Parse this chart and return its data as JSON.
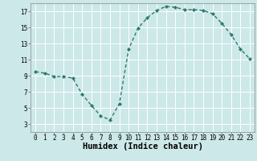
{
  "xlabel": "Humidex (Indice chaleur)",
  "ylabel": "",
  "x": [
    0,
    1,
    2,
    3,
    4,
    5,
    6,
    7,
    8,
    9,
    10,
    11,
    12,
    13,
    14,
    15,
    16,
    17,
    18,
    19,
    20,
    21,
    22,
    23
  ],
  "y": [
    9.5,
    9.3,
    8.9,
    8.9,
    8.7,
    6.7,
    5.3,
    4.0,
    3.5,
    5.5,
    12.3,
    14.9,
    16.2,
    17.1,
    17.6,
    17.5,
    17.2,
    17.2,
    17.1,
    16.7,
    15.5,
    14.1,
    12.3,
    11.1
  ],
  "line_color": "#2d7a6e",
  "marker": "D",
  "marker_size": 2.0,
  "bg_color": "#cce8e8",
  "grid_color": "#ffffff",
  "ylim": [
    2,
    18
  ],
  "xlim": [
    -0.5,
    23.5
  ],
  "yticks": [
    3,
    5,
    7,
    9,
    11,
    13,
    15,
    17
  ],
  "xticks": [
    0,
    1,
    2,
    3,
    4,
    5,
    6,
    7,
    8,
    9,
    10,
    11,
    12,
    13,
    14,
    15,
    16,
    17,
    18,
    19,
    20,
    21,
    22,
    23
  ],
  "tick_fontsize": 5.5,
  "xlabel_fontsize": 7.5,
  "line_width": 1.0
}
